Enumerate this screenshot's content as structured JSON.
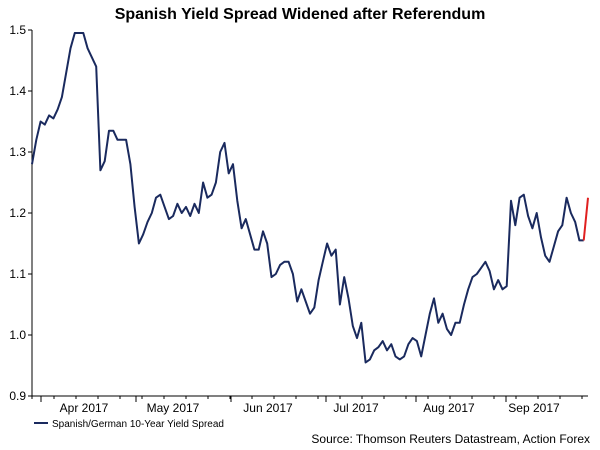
{
  "chart_data": {
    "type": "line",
    "title": "Spanish Yield Spread Widened after Referendum",
    "xlabel": "",
    "ylabel": "",
    "ylim": [
      0.9,
      1.5
    ],
    "yticks": [
      "0.9",
      "1.0",
      "1.1",
      "1.2",
      "1.3",
      "1.4",
      "1.5"
    ],
    "xtick_labels": [
      "Apr 2017",
      "May 2017",
      "Jun 2017",
      "Jul 2017",
      "Aug 2017",
      "Sep 2017"
    ],
    "legend": "Spanish/German 10-Year Yield Spread",
    "legend_position": "bottom-left",
    "line_color": "#1a2a5e",
    "highlight_color": "#e02020",
    "series": [
      {
        "name": "Spanish/German 10-Year Yield Spread",
        "values": [
          1.28,
          1.32,
          1.35,
          1.345,
          1.36,
          1.355,
          1.37,
          1.39,
          1.43,
          1.47,
          1.495,
          1.495,
          1.495,
          1.47,
          1.455,
          1.44,
          1.27,
          1.285,
          1.335,
          1.335,
          1.32,
          1.32,
          1.32,
          1.28,
          1.21,
          1.15,
          1.165,
          1.185,
          1.2,
          1.225,
          1.23,
          1.21,
          1.19,
          1.195,
          1.215,
          1.2,
          1.21,
          1.195,
          1.215,
          1.2,
          1.25,
          1.225,
          1.23,
          1.25,
          1.3,
          1.315,
          1.265,
          1.28,
          1.22,
          1.175,
          1.19,
          1.165,
          1.14,
          1.14,
          1.17,
          1.15,
          1.095,
          1.1,
          1.115,
          1.12,
          1.12,
          1.1,
          1.055,
          1.075,
          1.055,
          1.035,
          1.045,
          1.09,
          1.12,
          1.15,
          1.13,
          1.14,
          1.05,
          1.095,
          1.06,
          1.015,
          0.995,
          1.02,
          0.955,
          0.96,
          0.975,
          0.98,
          0.99,
          0.975,
          0.985,
          0.965,
          0.96,
          0.965,
          0.985,
          0.995,
          0.99,
          0.965,
          1.0,
          1.035,
          1.06,
          1.02,
          1.035,
          1.01,
          1.0,
          1.02,
          1.02,
          1.05,
          1.075,
          1.095,
          1.1,
          1.11,
          1.12,
          1.105,
          1.075,
          1.09,
          1.075,
          1.08,
          1.22,
          1.18,
          1.225,
          1.23,
          1.195,
          1.175,
          1.2,
          1.16,
          1.13,
          1.12,
          1.145,
          1.17,
          1.18,
          1.225,
          1.2,
          1.185,
          1.155,
          1.155,
          1.225
        ]
      }
    ]
  },
  "source": "Source: Thomson Reuters Datastream, Action Forex"
}
